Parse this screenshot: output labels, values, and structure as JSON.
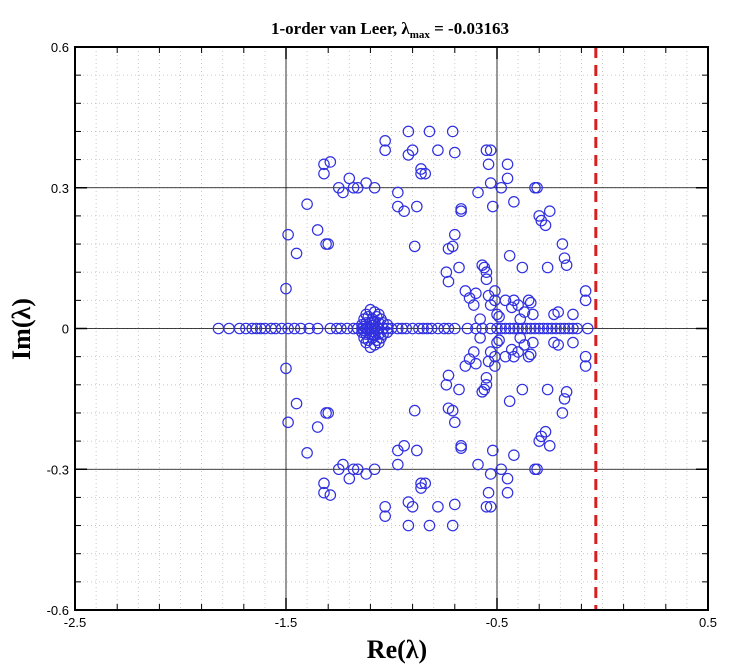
{
  "chart_data": {
    "type": "scatter",
    "title": {
      "prefix": "1-order van Leer,  ",
      "symbol": "λ",
      "subscript": "max",
      "suffix": " = -0.03163"
    },
    "xlabel": "Re(λ)",
    "ylabel": "Im(λ)",
    "xlim": [
      -2.5,
      0.5
    ],
    "ylim": [
      -0.6,
      0.6
    ],
    "x_ticks": [
      -2.5,
      -1.5,
      -0.5,
      0.5
    ],
    "x_tick_labels": [
      "-2.5",
      "-1.5",
      "-0.5",
      "0.5"
    ],
    "y_ticks": [
      -0.6,
      -0.3,
      0,
      0.3,
      0.6
    ],
    "y_tick_labels": [
      "-0.6",
      "-0.3",
      "0",
      "0.3",
      "0.6"
    ],
    "major_grid_x": [
      -1.5,
      -0.5
    ],
    "major_grid_y": [
      -0.3,
      0,
      0.3
    ],
    "minor_grid": true,
    "reference_line": {
      "x": -0.03163,
      "style": "dashed",
      "color": "#d62020"
    },
    "marker_color": "#3030e0",
    "marker": "open-circle",
    "upper_points": [
      [
        -1.5,
        0.085
      ],
      [
        -1.49,
        0.2
      ],
      [
        -1.45,
        0.16
      ],
      [
        -1.4,
        0.265
      ],
      [
        -1.35,
        0.21
      ],
      [
        -1.31,
        0.18
      ],
      [
        -1.3,
        0.18
      ],
      [
        -1.32,
        0.33
      ],
      [
        -1.32,
        0.35
      ],
      [
        -1.29,
        0.355
      ],
      [
        -1.25,
        0.3
      ],
      [
        -1.23,
        0.29
      ],
      [
        -1.2,
        0.32
      ],
      [
        -1.18,
        0.3
      ],
      [
        -1.16,
        0.3
      ],
      [
        -1.12,
        0.31
      ],
      [
        -1.08,
        0.3
      ],
      [
        -1.03,
        0.4
      ],
      [
        -1.03,
        0.38
      ],
      [
        -0.97,
        0.29
      ],
      [
        -0.97,
        0.26
      ],
      [
        -0.94,
        0.25
      ],
      [
        -0.92,
        0.42
      ],
      [
        -0.92,
        0.37
      ],
      [
        -0.9,
        0.38
      ],
      [
        -0.89,
        0.175
      ],
      [
        -0.88,
        0.26
      ],
      [
        -0.86,
        0.34
      ],
      [
        -0.86,
        0.33
      ],
      [
        -0.84,
        0.33
      ],
      [
        -0.82,
        0.42
      ],
      [
        -0.78,
        0.38
      ],
      [
        -0.74,
        0.12
      ],
      [
        -0.73,
        0.1
      ],
      [
        -0.71,
        0.42
      ],
      [
        -0.7,
        0.375
      ],
      [
        -0.73,
        0.17
      ],
      [
        -0.71,
        0.175
      ],
      [
        -0.7,
        0.2
      ],
      [
        -0.68,
        0.13
      ],
      [
        -0.67,
        0.25
      ],
      [
        -0.67,
        0.255
      ],
      [
        -0.65,
        0.08
      ],
      [
        -0.63,
        0.065
      ],
      [
        -0.61,
        0.05
      ],
      [
        -0.6,
        0.075
      ],
      [
        -0.59,
        0.29
      ],
      [
        -0.58,
        0.02
      ],
      [
        -0.57,
        0.135
      ],
      [
        -0.56,
        0.13
      ],
      [
        -0.55,
        0.12
      ],
      [
        -0.55,
        0.105
      ],
      [
        -0.54,
        0.07
      ],
      [
        -0.53,
        0.05
      ],
      [
        -0.55,
        0.38
      ],
      [
        -0.54,
        0.35
      ],
      [
        -0.53,
        0.38
      ],
      [
        -0.53,
        0.31
      ],
      [
        -0.52,
        0.26
      ],
      [
        -0.51,
        0.06
      ],
      [
        -0.51,
        0.08
      ],
      [
        -0.5,
        0.03
      ],
      [
        -0.49,
        0.025
      ],
      [
        -0.48,
        0.3
      ],
      [
        -0.46,
        0.06
      ],
      [
        -0.45,
        0.35
      ],
      [
        -0.45,
        0.32
      ],
      [
        -0.44,
        0.155
      ],
      [
        -0.43,
        0.045
      ],
      [
        -0.42,
        0.06
      ],
      [
        -0.42,
        0.27
      ],
      [
        -0.4,
        0.05
      ],
      [
        -0.39,
        0.02
      ],
      [
        -0.38,
        0.13
      ],
      [
        -0.37,
        0.035
      ],
      [
        -0.35,
        0.06
      ],
      [
        -0.34,
        0.055
      ],
      [
        -0.33,
        0.03
      ],
      [
        -0.32,
        0.3
      ],
      [
        -0.31,
        0.3
      ],
      [
        -0.3,
        0.24
      ],
      [
        -0.29,
        0.23
      ],
      [
        -0.27,
        0.22
      ],
      [
        -0.26,
        0.13
      ],
      [
        -0.25,
        0.25
      ],
      [
        -0.23,
        0.03
      ],
      [
        -0.21,
        0.035
      ],
      [
        -0.19,
        0.18
      ],
      [
        -0.18,
        0.15
      ],
      [
        -0.17,
        0.135
      ],
      [
        -0.14,
        0.03
      ],
      [
        -0.08,
        0.08
      ],
      [
        -0.08,
        0.06
      ],
      [
        -1.12,
        0.03
      ],
      [
        -1.1,
        0.04
      ],
      [
        -1.08,
        0.035
      ],
      [
        -1.06,
        0.03
      ],
      [
        -1.13,
        0.02
      ],
      [
        -1.11,
        0.025
      ],
      [
        -1.09,
        0.02
      ],
      [
        -1.07,
        0.025
      ],
      [
        -1.05,
        0.02
      ],
      [
        -1.12,
        0.012
      ],
      [
        -1.1,
        0.012
      ],
      [
        -1.08,
        0.015
      ],
      [
        -1.06,
        0.012
      ],
      [
        -1.04,
        0.012
      ],
      [
        -1.14,
        0.008
      ],
      [
        -1.02,
        0.008
      ],
      [
        -1.09,
        0.006
      ],
      [
        -1.11,
        0.004
      ],
      [
        -1.13,
        0.004
      ],
      [
        -1.07,
        0.004
      ]
    ],
    "real_points": [
      [
        -1.82,
        0
      ],
      [
        -1.77,
        0
      ],
      [
        -1.72,
        0
      ],
      [
        -1.69,
        0
      ],
      [
        -1.66,
        0
      ],
      [
        -1.64,
        0
      ],
      [
        -1.62,
        0
      ],
      [
        -1.6,
        0
      ],
      [
        -1.57,
        0
      ],
      [
        -1.55,
        0
      ],
      [
        -1.52,
        0
      ],
      [
        -1.49,
        0
      ],
      [
        -1.46,
        0
      ],
      [
        -1.43,
        0
      ],
      [
        -1.39,
        0
      ],
      [
        -1.35,
        0
      ],
      [
        -1.29,
        0
      ],
      [
        -1.26,
        0
      ],
      [
        -1.24,
        0
      ],
      [
        -1.21,
        0
      ],
      [
        -1.18,
        0
      ],
      [
        -1.16,
        0
      ],
      [
        -1.14,
        0
      ],
      [
        -1.12,
        0
      ],
      [
        -1.1,
        0
      ],
      [
        -1.08,
        0
      ],
      [
        -1.06,
        0
      ],
      [
        -1.04,
        0
      ],
      [
        -1.02,
        0
      ],
      [
        -1.0,
        0
      ],
      [
        -0.97,
        0
      ],
      [
        -0.95,
        0
      ],
      [
        -0.93,
        0
      ],
      [
        -0.9,
        0
      ],
      [
        -0.87,
        0
      ],
      [
        -0.85,
        0
      ],
      [
        -0.83,
        0
      ],
      [
        -0.81,
        0
      ],
      [
        -0.78,
        0
      ],
      [
        -0.75,
        0
      ],
      [
        -0.73,
        0
      ],
      [
        -0.7,
        0
      ],
      [
        -0.64,
        0
      ],
      [
        -0.6,
        0
      ],
      [
        -0.57,
        0
      ],
      [
        -0.53,
        0
      ],
      [
        -0.5,
        0
      ],
      [
        -0.48,
        0
      ],
      [
        -0.46,
        0
      ],
      [
        -0.44,
        0
      ],
      [
        -0.42,
        0
      ],
      [
        -0.4,
        0
      ],
      [
        -0.38,
        0
      ],
      [
        -0.36,
        0
      ],
      [
        -0.34,
        0
      ],
      [
        -0.32,
        0
      ],
      [
        -0.3,
        0
      ],
      [
        -0.28,
        0
      ],
      [
        -0.26,
        0
      ],
      [
        -0.24,
        0
      ],
      [
        -0.22,
        0
      ],
      [
        -0.2,
        0
      ],
      [
        -0.18,
        0
      ],
      [
        -0.16,
        0
      ],
      [
        -0.14,
        0
      ],
      [
        -0.12,
        0
      ],
      [
        -0.07,
        0
      ]
    ]
  }
}
